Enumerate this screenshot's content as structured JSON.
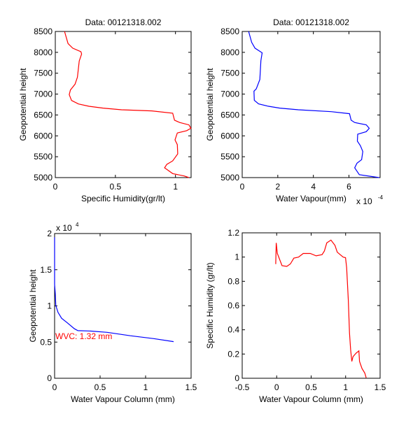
{
  "chart_data": [
    {
      "type": "line",
      "title": "Data: 00121318.002",
      "xlabel": "Specific Humidity(gr/lt)",
      "ylabel": "Geopotential height",
      "xlim": [
        0,
        1.13
      ],
      "ylim": [
        5000,
        8500
      ],
      "xticks": [
        0,
        0.5,
        1
      ],
      "xtick_labels": [
        "0",
        "0.5",
        "1"
      ],
      "yticks": [
        5000,
        5500,
        6000,
        6500,
        7000,
        7500,
        8000,
        8500
      ],
      "ytick_labels": [
        "5000",
        "5500",
        "6000",
        "6500",
        "7000",
        "7500",
        "8000",
        "8500"
      ],
      "series": [
        {
          "name": "specific humidity",
          "color": "#ff0000",
          "x": [
            0.077,
            0.106,
            0.145,
            0.213,
            0.219,
            0.199,
            0.184,
            0.164,
            0.126,
            0.116,
            0.135,
            0.193,
            0.28,
            0.397,
            0.551,
            0.803,
            0.977,
            0.992,
            1.035,
            1.112,
            1.128,
            1.093,
            1.015,
            0.996,
            1.015,
            1.019,
            0.977,
            0.928,
            0.909,
            0.977,
            1.073,
            1.112
          ],
          "y": [
            8500,
            8211,
            8100,
            8016,
            7960,
            7793,
            7404,
            7237,
            7098,
            6987,
            6847,
            6764,
            6708,
            6664,
            6625,
            6597,
            6542,
            6375,
            6319,
            6263,
            6180,
            6124,
            6069,
            5902,
            5790,
            5568,
            5401,
            5317,
            5234,
            5095,
            5039,
            5000
          ]
        }
      ]
    },
    {
      "type": "line",
      "title": "Data: 00121318.002",
      "xlabel": "Water Vapour(mm)",
      "ylabel": "Geopotential height",
      "x_multiplier": "x 10",
      "x_multiplier_exp": "-4",
      "xlim": [
        0,
        7.75
      ],
      "ylim": [
        5000,
        8500
      ],
      "xticks": [
        0,
        2,
        4,
        6
      ],
      "xtick_labels": [
        "0",
        "2",
        "4",
        "6"
      ],
      "yticks": [
        5000,
        5500,
        6000,
        6500,
        7000,
        7500,
        8000,
        8500
      ],
      "ytick_labels": [
        "5000",
        "5500",
        "6000",
        "6500",
        "7000",
        "7500",
        "8000",
        "8500"
      ],
      "series": [
        {
          "name": "water vapour",
          "color": "#0000ff",
          "x": [
            0.36,
            0.53,
            0.72,
            1.12,
            1.05,
            0.99,
            0.79,
            0.66,
            0.68,
            0.92,
            1.45,
            2.11,
            3.16,
            5.0,
            6.03,
            6.12,
            6.32,
            6.97,
            7.14,
            6.97,
            6.49,
            6.47,
            6.64,
            6.78,
            6.71,
            6.45,
            6.32,
            6.58,
            7.7
          ],
          "y": [
            8500,
            8240,
            8100,
            7990,
            7800,
            7350,
            7125,
            7070,
            6850,
            6765,
            6710,
            6665,
            6625,
            6580,
            6530,
            6375,
            6320,
            6265,
            6180,
            6100,
            6040,
            5875,
            5765,
            5625,
            5430,
            5345,
            5235,
            5070,
            5000
          ]
        }
      ]
    },
    {
      "type": "line",
      "title": "",
      "xlabel": "Water Vapour Column (mm)",
      "ylabel": "Geopotential height",
      "y_multiplier": "x 10",
      "y_multiplier_exp": "4",
      "annotation": "WVC: 1.32 mm",
      "annotation_color": "#ff0000",
      "xlim": [
        0,
        1.5
      ],
      "ylim": [
        0,
        20000
      ],
      "xticks": [
        0,
        0.5,
        1,
        1.5
      ],
      "xtick_labels": [
        "0",
        "0.5",
        "1",
        "1.5"
      ],
      "yticks": [
        0,
        5000,
        10000,
        15000,
        20000
      ],
      "ytick_labels": [
        "0",
        "0.5",
        "1",
        "1.5",
        "2"
      ],
      "series": [
        {
          "name": "water vapour column",
          "color": "#0000ff",
          "x": [
            0,
            0,
            0.008,
            0.013,
            0.038,
            0.077,
            0.141,
            0.218,
            0.256,
            0.397,
            0.577,
            0.833,
            1.09,
            1.308
          ],
          "y": [
            19480,
            12970,
            11680,
            10060,
            9100,
            8290,
            7650,
            6840,
            6580,
            6520,
            6350,
            5870,
            5480,
            5060
          ]
        }
      ]
    },
    {
      "type": "line",
      "title": "",
      "xlabel": "Water Vapour Column (mm)",
      "ylabel": "Specific Humidity (gr/lt)",
      "xlim": [
        -0.5,
        1.5
      ],
      "ylim": [
        0,
        1.2
      ],
      "xticks": [
        -0.5,
        0,
        0.5,
        1,
        1.5
      ],
      "xtick_labels": [
        "-0.5",
        "0",
        "0.5",
        "1",
        "1.5"
      ],
      "yticks": [
        0,
        0.2,
        0.4,
        0.6,
        0.8,
        1,
        1.2
      ],
      "ytick_labels": [
        "0",
        "0.2",
        "0.4",
        "0.6",
        "0.8",
        "1",
        "1.2"
      ],
      "series": [
        {
          "name": "specific humidity vs column",
          "color": "#ff0000",
          "x": [
            -0.014,
            -0.007,
            0.01,
            0.078,
            0.147,
            0.198,
            0.249,
            0.317,
            0.385,
            0.487,
            0.572,
            0.658,
            0.692,
            0.726,
            0.787,
            0.845,
            0.879,
            0.964,
            0.998,
            1.015,
            1.039,
            1.056,
            1.073,
            1.09,
            1.107,
            1.152,
            1.192,
            1.202,
            1.237,
            1.278,
            1.298
          ],
          "y": [
            0.942,
            1.117,
            1.03,
            0.929,
            0.923,
            0.943,
            0.991,
            1.0,
            1.03,
            1.03,
            1.01,
            1.02,
            1.05,
            1.117,
            1.14,
            1.097,
            1.04,
            1.0,
            0.995,
            0.913,
            0.643,
            0.372,
            0.236,
            0.139,
            0.178,
            0.207,
            0.226,
            0.139,
            0.081,
            0.043,
            0.004
          ]
        }
      ]
    }
  ]
}
